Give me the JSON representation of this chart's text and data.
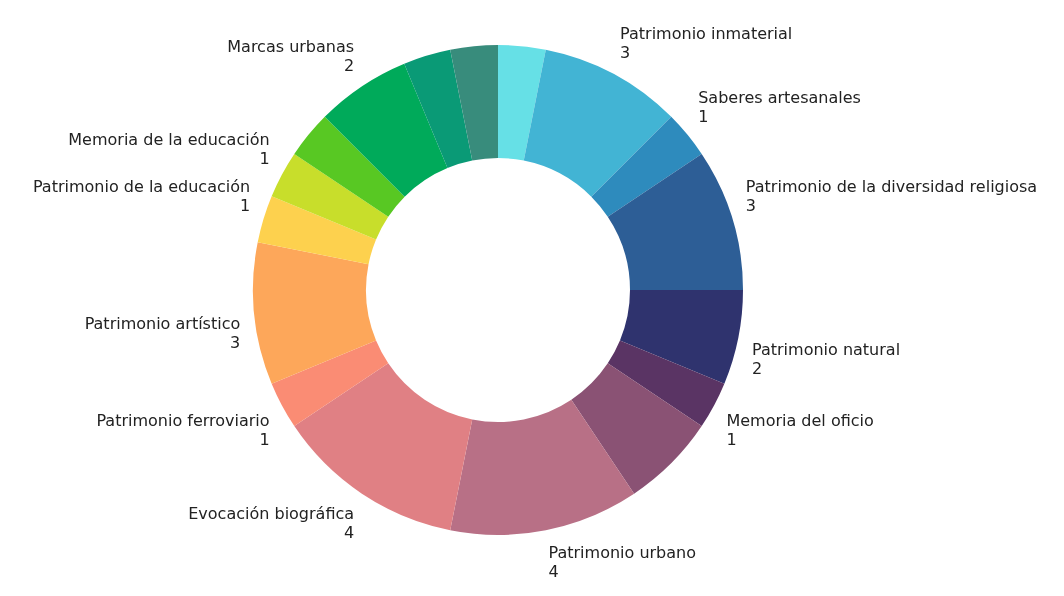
{
  "chart_data": {
    "type": "donut",
    "categories": [
      null,
      "Patrimonio inmaterial",
      "Saberes artesanales",
      "Patrimonio de la diversidad religiosa",
      "Patrimonio natural",
      "Memoria del oficio",
      null,
      "Patrimonio urbano",
      "Evocación biográfica",
      "Patrimonio ferroviario",
      "Patrimonio artístico",
      "Patrimonio de la educación",
      "Memoria de la educación",
      null,
      "Marcas urbanas",
      null,
      null
    ],
    "values": [
      1,
      3,
      1,
      3,
      2,
      1,
      2,
      4,
      4,
      1,
      3,
      1,
      1,
      1,
      2,
      1,
      1
    ],
    "value_labels": [
      null,
      "3",
      "1",
      "3",
      "2",
      "1",
      null,
      "4",
      "4",
      "1",
      "3",
      "1",
      "1",
      null,
      "2",
      null,
      null
    ],
    "colors": [
      "#66e0e6",
      "#42b4d4",
      "#2e8bbd",
      "#2d5e96",
      "#2f336e",
      "#5a3464",
      "#8a5274",
      "#b87086",
      "#e08084",
      "#fa8c74",
      "#fda75a",
      "#fdd14e",
      "#c8de2b",
      "#58c823",
      "#00aa5a",
      "#0a9a76",
      "#388c7c"
    ]
  }
}
